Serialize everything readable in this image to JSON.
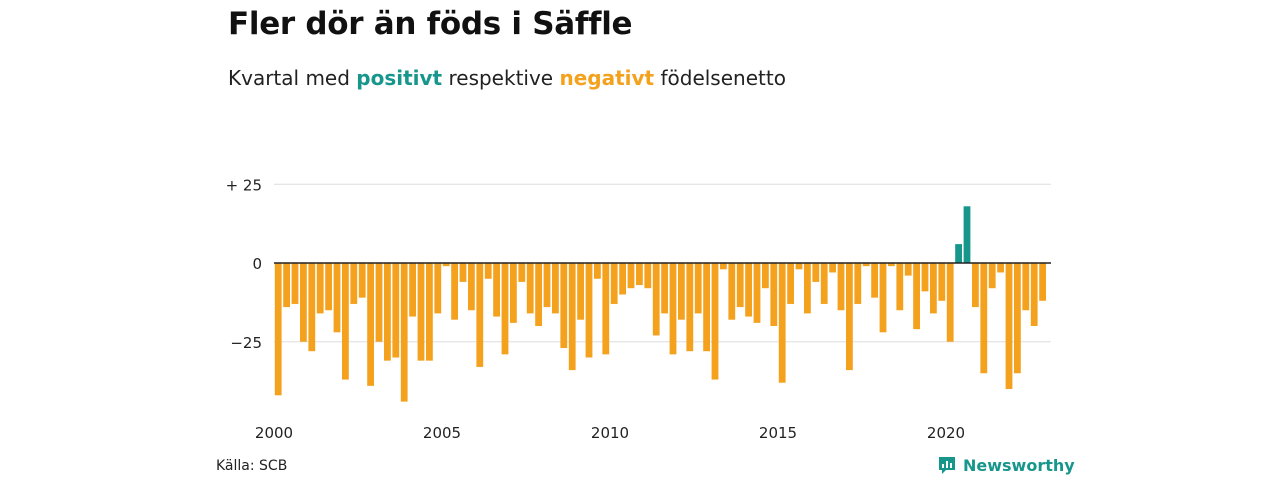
{
  "header": {
    "title": "Fler dör än föds i Säffle",
    "subtitle_start": "Kvartal med ",
    "subtitle_pos": "positivt",
    "subtitle_mid": " respektive ",
    "subtitle_neg": "negativt",
    "subtitle_end": " födelsenetto"
  },
  "footer": {
    "source": "Källa: SCB",
    "brand": "Newsworthy"
  },
  "colors": {
    "positive": "#17968c",
    "negative": "#f4a11d",
    "grid": "#dddddd",
    "zero_line": "#222222"
  },
  "chart_data": {
    "type": "bar",
    "x_start": 2000.0,
    "x_step": 0.25,
    "xlim": [
      2000,
      2023.25
    ],
    "ylim": [
      -45,
      30
    ],
    "y_ticks": [
      {
        "value": 25,
        "label": "+ 25"
      },
      {
        "value": 0,
        "label": "0"
      },
      {
        "value": -25,
        "label": "−25"
      }
    ],
    "x_ticks": [
      {
        "value": 2000,
        "label": "2000"
      },
      {
        "value": 2005,
        "label": "2005"
      },
      {
        "value": 2010,
        "label": "2010"
      },
      {
        "value": 2015,
        "label": "2015"
      },
      {
        "value": 2020,
        "label": "2020"
      }
    ],
    "values": [
      -42,
      -14,
      -13,
      -25,
      -28,
      -16,
      -15,
      -22,
      -37,
      -13,
      -11,
      -39,
      -25,
      -31,
      -30,
      -44,
      -17,
      -31,
      -31,
      -16,
      -1,
      -18,
      -6,
      -15,
      -33,
      -5,
      -17,
      -29,
      -19,
      -6,
      -16,
      -20,
      -14,
      -16,
      -27,
      -34,
      -18,
      -30,
      -5,
      -29,
      -13,
      -10,
      -8,
      -7,
      -8,
      -23,
      -16,
      -29,
      -18,
      -28,
      -16,
      -28,
      -37,
      -2,
      -18,
      -14,
      -17,
      -19,
      -8,
      -20,
      -38,
      -13,
      -2,
      -16,
      -6,
      -13,
      -3,
      -15,
      -34,
      -13,
      -1,
      -11,
      -22,
      -1,
      -15,
      -4,
      -21,
      -9,
      -16,
      -12,
      -25,
      6,
      18,
      -14,
      -35,
      -8,
      -3,
      -40,
      -35,
      -15,
      -20,
      -12
    ]
  }
}
